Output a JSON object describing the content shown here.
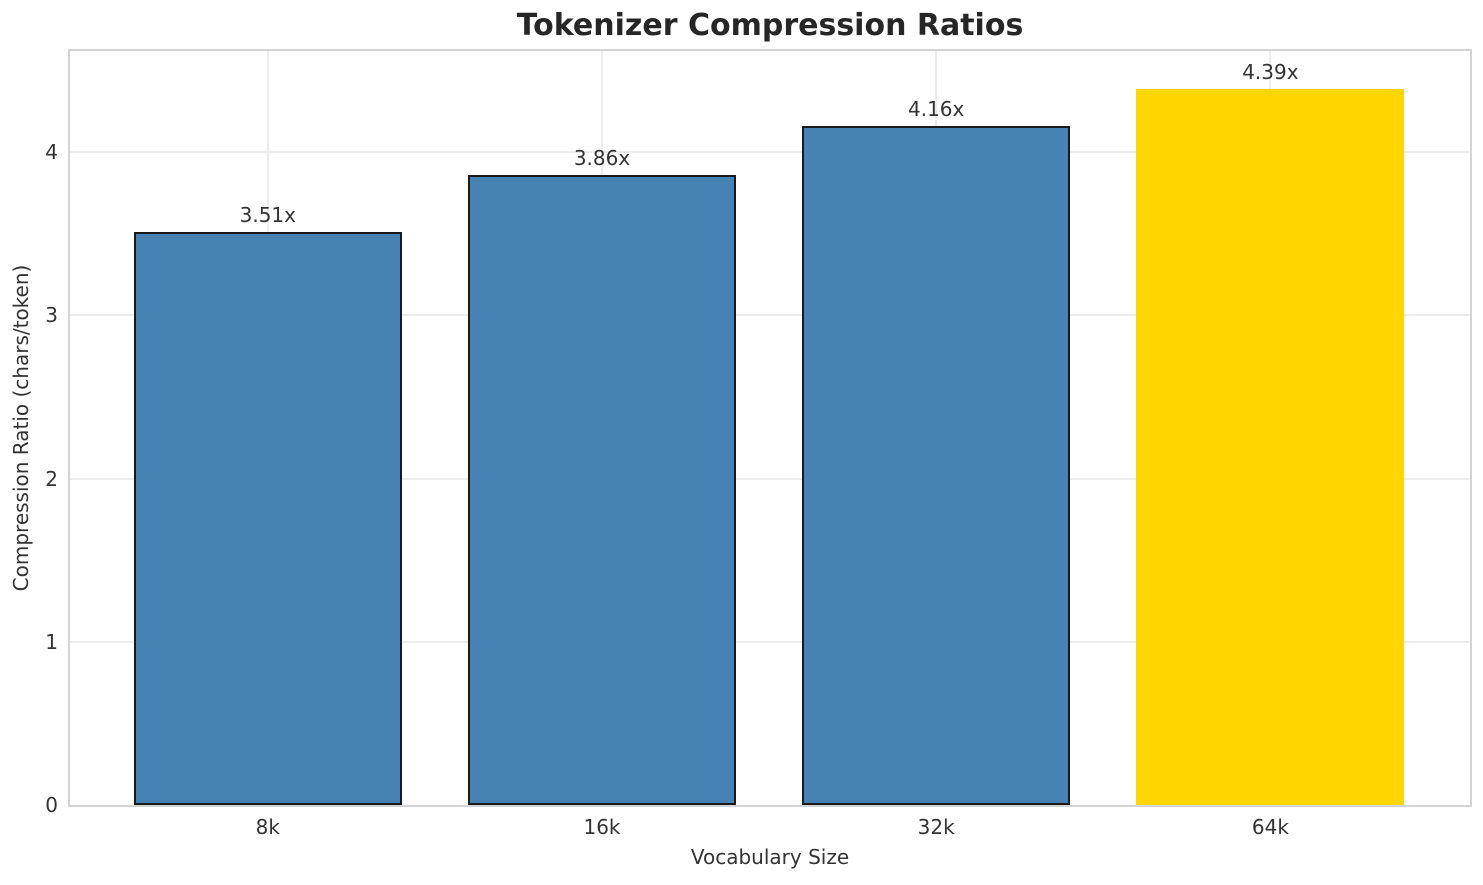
{
  "chart_data": {
    "type": "bar",
    "title": "Tokenizer Compression Ratios",
    "xlabel": "Vocabulary Size",
    "ylabel": "Compression Ratio (chars/token)",
    "categories": [
      "8k",
      "16k",
      "32k",
      "64k"
    ],
    "values": [
      3.51,
      3.86,
      4.16,
      4.39
    ],
    "bar_labels": [
      "3.51x",
      "3.86x",
      "4.16x",
      "4.39x"
    ],
    "yticks": [
      0,
      1,
      2,
      3,
      4
    ],
    "ylim": [
      0,
      4.62
    ],
    "grid": true,
    "legend": "none",
    "base_color": "#4682B4",
    "highlight_color": "#FFD700",
    "bar_colors": [
      "#4682B4",
      "#4682B4",
      "#4682B4",
      "#FFD700"
    ],
    "bar_edge_colors": [
      "#1a1a1a",
      "#1a1a1a",
      "#1a1a1a",
      "none"
    ],
    "grid_color": "#ececec",
    "spine_color": "#d4d4d4",
    "title_color": "#262626",
    "text_color": "#333333"
  }
}
